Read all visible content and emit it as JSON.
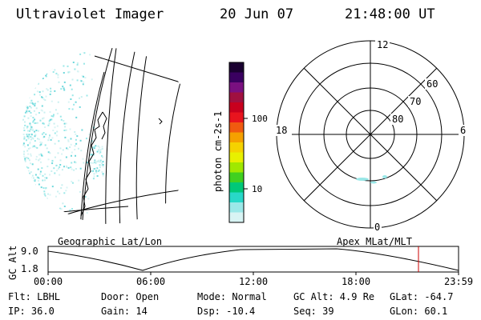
{
  "header": {
    "instrument": "Ultraviolet Imager",
    "date": "20 Jun 07",
    "time": "21:48:00 UT"
  },
  "colorbar": {
    "label": "photon cm-2s-1",
    "ticks": [
      "100",
      "10"
    ],
    "colors": [
      "#1a0030",
      "#3a0060",
      "#7a1080",
      "#a01040",
      "#c8001e",
      "#e8141e",
      "#f05a10",
      "#f5a000",
      "#f5d200",
      "#e8f000",
      "#a0e800",
      "#40d020",
      "#00c878",
      "#28d8c8",
      "#9ae8e8",
      "#d8f4f4"
    ]
  },
  "geo_map": {
    "label": "Geographic Lat/Lon"
  },
  "polar_map": {
    "label": "Apex MLat/MLT",
    "mlt_labels": {
      "top": "12",
      "left": "18",
      "right": "6",
      "bottom": "0"
    },
    "lat_labels": [
      "60",
      "70",
      "80"
    ]
  },
  "altitude_strip": {
    "ylabel": "GC Alt",
    "y_ticks": [
      "9.0",
      "1.8"
    ],
    "x_ticks": [
      "00:00",
      "06:00",
      "12:00",
      "18:00",
      "23:59"
    ],
    "marker_color": "#cc0000"
  },
  "info": {
    "filter": "Flt: LBHL",
    "door": "Door: Open",
    "mode": "Mode: Normal",
    "gc_alt": "GC Alt: 4.9 Re",
    "glat": "GLat: -64.7",
    "ip": "IP: 36.0",
    "gain": "Gain: 14",
    "dsp": "Dsp:  -10.4",
    "seq": "Seq: 39",
    "glon": "GLon:  60.1"
  }
}
